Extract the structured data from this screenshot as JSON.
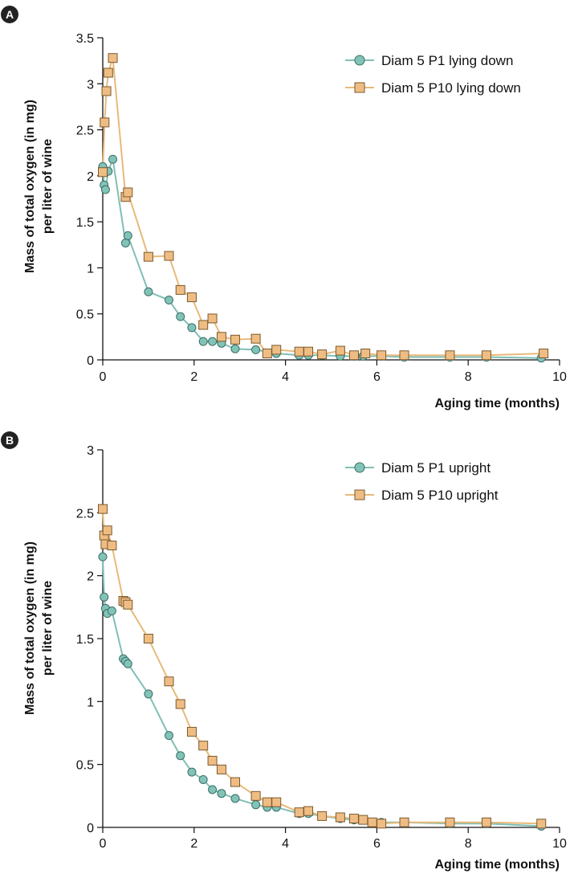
{
  "colors": {
    "p1_line": "#7fbfb5",
    "p1_marker_fill": "#82c3b8",
    "p1_marker_stroke": "#3b6f67",
    "p10_line": "#e8b97a",
    "p10_marker_fill": "#efbd84",
    "p10_marker_stroke": "#7a5a2e",
    "axis": "#111111",
    "panel_badge": "#222222"
  },
  "chart_data": [
    {
      "panel": "A",
      "type": "line",
      "markers": true,
      "xlabel": "Aging time (months)",
      "ylabel_line1": "Mass of total oxygen (in mg)",
      "ylabel_line2": "per liter of wine",
      "xlim": [
        0,
        10
      ],
      "ylim": [
        0,
        3.5
      ],
      "xticks": [
        "0",
        "2",
        "4",
        "6",
        "8",
        "10"
      ],
      "yticks": [
        "0",
        "0.5",
        "1",
        "1.5",
        "2",
        "2.5",
        "3",
        "3.5"
      ],
      "legend_position": "top-right",
      "grid": false,
      "series": [
        {
          "name": "Diam 5 P1 lying down",
          "marker": "circle",
          "x": [
            0,
            0.03,
            0.06,
            0.12,
            0.22,
            0.5,
            0.55,
            1.0,
            1.45,
            1.7,
            1.95,
            2.2,
            2.4,
            2.6,
            2.9,
            3.35,
            3.8,
            4.3,
            4.5,
            4.8,
            5.2,
            5.5,
            5.7,
            6.1,
            6.6,
            7.6,
            8.4,
            9.6
          ],
          "y": [
            2.1,
            1.9,
            1.85,
            2.05,
            2.18,
            1.27,
            1.35,
            0.74,
            0.65,
            0.47,
            0.35,
            0.2,
            0.2,
            0.18,
            0.12,
            0.11,
            0.07,
            0.05,
            0.05,
            0.05,
            0.04,
            0.04,
            0.04,
            0.04,
            0.03,
            0.03,
            0.03,
            0.02
          ]
        },
        {
          "name": "Diam 5 P10 lying down",
          "marker": "square",
          "x": [
            0,
            0.04,
            0.08,
            0.12,
            0.22,
            0.5,
            0.55,
            1.0,
            1.45,
            1.7,
            1.95,
            2.2,
            2.4,
            2.6,
            2.9,
            3.35,
            3.6,
            3.8,
            4.3,
            4.5,
            4.8,
            5.2,
            5.5,
            5.75,
            6.1,
            6.6,
            7.6,
            8.4,
            9.65
          ],
          "y": [
            2.04,
            2.58,
            2.92,
            3.12,
            3.28,
            1.77,
            1.82,
            1.12,
            1.13,
            0.76,
            0.68,
            0.38,
            0.45,
            0.25,
            0.22,
            0.23,
            0.07,
            0.11,
            0.09,
            0.09,
            0.06,
            0.1,
            0.05,
            0.07,
            0.05,
            0.05,
            0.05,
            0.05,
            0.07
          ]
        }
      ]
    },
    {
      "panel": "B",
      "type": "line",
      "markers": true,
      "xlabel": "Aging time (months)",
      "ylabel_line1": "Mass of total oxygen (in mg)",
      "ylabel_line2": "per liter of wine",
      "xlim": [
        0,
        10
      ],
      "ylim": [
        0,
        3
      ],
      "xticks": [
        "0",
        "2",
        "4",
        "6",
        "8",
        "10"
      ],
      "yticks": [
        "0",
        "0.5",
        "1",
        "1.5",
        "2",
        "2.5",
        "3"
      ],
      "legend_position": "top-right",
      "grid": false,
      "series": [
        {
          "name": "Diam 5 P1 upright",
          "marker": "circle",
          "x": [
            0,
            0.03,
            0.06,
            0.1,
            0.2,
            0.45,
            0.5,
            0.55,
            1.0,
            1.45,
            1.7,
            1.95,
            2.2,
            2.4,
            2.6,
            2.9,
            3.35,
            3.6,
            3.8,
            4.3,
            4.5,
            4.8,
            5.2,
            5.5,
            5.7,
            6.1,
            6.6,
            7.6,
            8.4,
            9.6
          ],
          "y": [
            2.15,
            1.83,
            1.74,
            1.7,
            1.72,
            1.34,
            1.32,
            1.3,
            1.06,
            0.73,
            0.57,
            0.44,
            0.38,
            0.3,
            0.27,
            0.23,
            0.18,
            0.16,
            0.16,
            0.11,
            0.11,
            0.09,
            0.07,
            0.06,
            0.06,
            0.04,
            0.04,
            0.03,
            0.03,
            0.01
          ]
        },
        {
          "name": "Diam 5 P10 upright",
          "marker": "square",
          "x": [
            0,
            0.03,
            0.06,
            0.1,
            0.2,
            0.45,
            0.5,
            0.55,
            1.0,
            1.45,
            1.7,
            1.95,
            2.2,
            2.4,
            2.6,
            2.9,
            3.35,
            3.6,
            3.8,
            4.3,
            4.5,
            4.8,
            5.2,
            5.5,
            5.7,
            5.9,
            6.1,
            6.6,
            7.6,
            8.4,
            9.6
          ],
          "y": [
            2.53,
            2.32,
            2.25,
            2.36,
            2.24,
            1.8,
            1.79,
            1.77,
            1.5,
            1.16,
            0.98,
            0.76,
            0.65,
            0.53,
            0.46,
            0.36,
            0.25,
            0.2,
            0.2,
            0.12,
            0.13,
            0.09,
            0.08,
            0.07,
            0.06,
            0.04,
            0.03,
            0.04,
            0.04,
            0.04,
            0.03
          ]
        }
      ]
    }
  ]
}
